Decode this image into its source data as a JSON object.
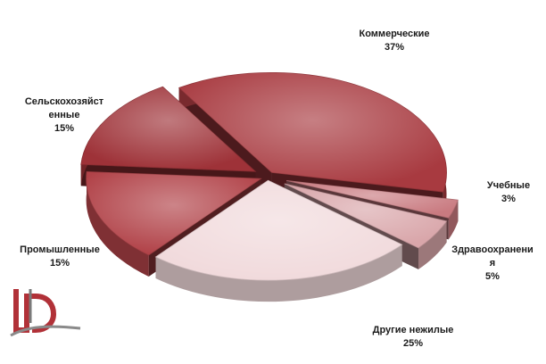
{
  "chart_data": {
    "type": "pie",
    "style": "3d-exploded",
    "slices": [
      {
        "label": "Коммерческие",
        "value": 37,
        "value_label": "37%",
        "color": "#a83a40"
      },
      {
        "label": "Учебные",
        "value": 3,
        "value_label": "3%",
        "color": "#c97a80"
      },
      {
        "label": "Здравоохранени\nя",
        "value": 5,
        "value_label": "5%",
        "color": "#d9a6aa"
      },
      {
        "label": "Другие нежилые",
        "value": 25,
        "value_label": "25%",
        "color": "#f1dadc"
      },
      {
        "label": "Промышленные",
        "value": 15,
        "value_label": "15%",
        "color": "#b14248"
      },
      {
        "label": "Сельскохозяйст\nенные",
        "value": 15,
        "value_label": "15%",
        "color": "#9e3238"
      }
    ]
  },
  "logo": {
    "icon": "d-logo-icon"
  }
}
